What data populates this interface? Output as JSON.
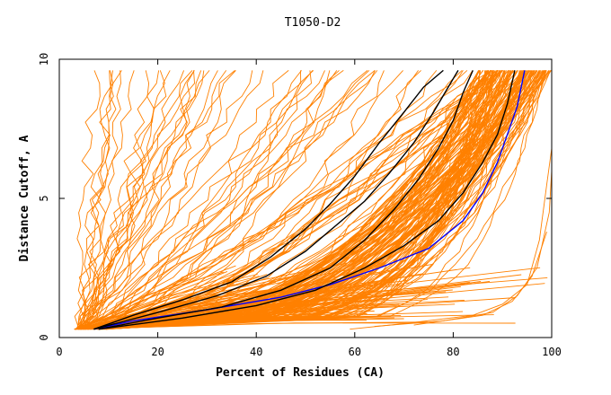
{
  "chart_data": {
    "type": "line",
    "title": "T1050-D2",
    "xlabel": "Percent of Residues (CA)",
    "ylabel": "Distance Cutoff, A",
    "xlim": [
      0,
      100
    ],
    "ylim": [
      0,
      10
    ],
    "x_ticks": [
      0,
      20,
      40,
      60,
      80,
      100
    ],
    "y_ticks": [
      0,
      5,
      10
    ],
    "grid": false,
    "legend": "none",
    "colors": {
      "bulk": "#ff8000",
      "highlight_black": "#000000",
      "highlight_blue": "#0000ff"
    },
    "series": [
      {
        "color": "#0000ff",
        "points": [
          [
            7,
            0.3
          ],
          [
            15,
            0.6
          ],
          [
            30,
            1.0
          ],
          [
            45,
            1.45
          ],
          [
            55,
            1.9
          ],
          [
            65,
            2.5
          ],
          [
            75,
            3.2
          ],
          [
            82,
            4.2
          ],
          [
            86,
            5.2
          ],
          [
            89,
            6.3
          ],
          [
            91,
            7.3
          ],
          [
            93,
            8.3
          ],
          [
            94.5,
            9.6
          ]
        ]
      },
      {
        "color": "#000000",
        "points": [
          [
            7,
            0.3
          ],
          [
            15,
            0.8
          ],
          [
            25,
            1.35
          ],
          [
            35,
            2.0
          ],
          [
            43,
            2.9
          ],
          [
            50,
            3.9
          ],
          [
            55,
            4.8
          ],
          [
            60,
            5.8
          ],
          [
            65,
            7.0
          ],
          [
            70,
            8.1
          ],
          [
            74,
            9.0
          ],
          [
            78,
            9.6
          ]
        ]
      },
      {
        "color": "#000000",
        "points": [
          [
            7,
            0.3
          ],
          [
            20,
            0.9
          ],
          [
            32,
            1.5
          ],
          [
            42,
            2.2
          ],
          [
            50,
            3.1
          ],
          [
            56,
            4.0
          ],
          [
            62,
            4.9
          ],
          [
            67,
            5.9
          ],
          [
            72,
            7.0
          ],
          [
            76,
            8.1
          ],
          [
            79,
            9.0
          ],
          [
            81,
            9.6
          ]
        ]
      },
      {
        "color": "#000000",
        "points": [
          [
            8,
            0.3
          ],
          [
            20,
            0.7
          ],
          [
            33,
            1.1
          ],
          [
            45,
            1.7
          ],
          [
            55,
            2.5
          ],
          [
            62,
            3.5
          ],
          [
            68,
            4.6
          ],
          [
            73,
            5.7
          ],
          [
            77,
            6.8
          ],
          [
            80,
            7.8
          ],
          [
            82,
            8.8
          ],
          [
            84,
            9.6
          ]
        ]
      },
      {
        "color": "#000000",
        "points": [
          [
            8,
            0.3
          ],
          [
            25,
            0.7
          ],
          [
            40,
            1.15
          ],
          [
            52,
            1.7
          ],
          [
            62,
            2.5
          ],
          [
            70,
            3.3
          ],
          [
            77,
            4.2
          ],
          [
            82,
            5.2
          ],
          [
            86,
            6.3
          ],
          [
            89,
            7.3
          ],
          [
            91,
            8.4
          ],
          [
            92.5,
            9.6
          ]
        ]
      }
    ]
  }
}
